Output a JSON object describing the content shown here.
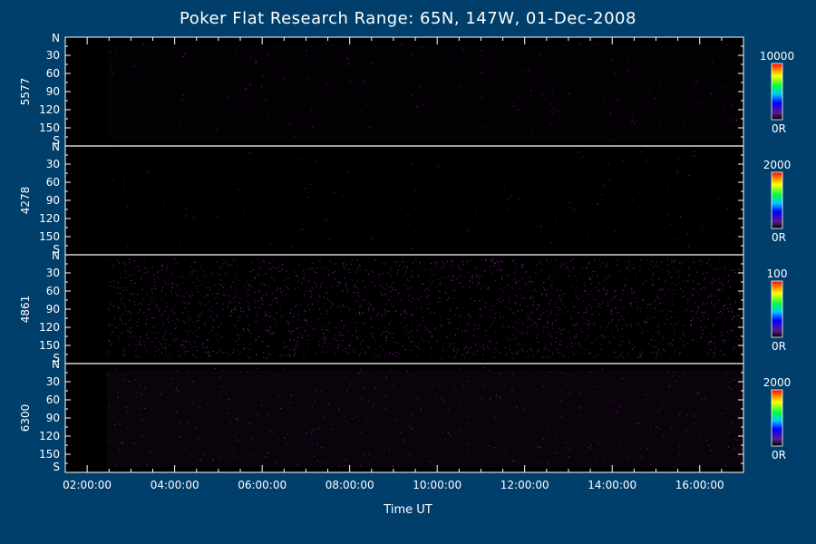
{
  "title": "Poker Flat Research Range: 65N, 147W, 01-Dec-2008",
  "colors": {
    "background": "#003f6b",
    "foreground": "#ffffff",
    "panel_fill": "#000000",
    "speckle": "#7a1e8a"
  },
  "chart_data": {
    "type": "heatmap",
    "title": "Poker Flat Research Range: 65N, 147W, 01-Dec-2008",
    "xlabel": "Time UT",
    "xlim_hours": [
      1.5,
      17.0
    ],
    "x_ticks": [
      "02:00:00",
      "04:00:00",
      "06:00:00",
      "08:00:00",
      "10:00:00",
      "12:00:00",
      "14:00:00",
      "16:00:00"
    ],
    "x_tick_hours": [
      2,
      4,
      6,
      8,
      10,
      12,
      14,
      16
    ],
    "y_ticks": [
      "N",
      "30",
      "60",
      "90",
      "120",
      "150",
      "S"
    ],
    "y_tick_values": [
      0,
      30,
      60,
      90,
      120,
      150,
      180
    ],
    "data_start_hour": 2.45,
    "panels": [
      {
        "name": "5577",
        "cb_max": "10000",
        "cb_min": "0R",
        "level": 0.1,
        "speckle": 0.05
      },
      {
        "name": "4278",
        "cb_max": "2000",
        "cb_min": "0R",
        "level": 0.0,
        "speckle": 0.04
      },
      {
        "name": "4861",
        "cb_max": "100",
        "cb_min": "0R",
        "level": 0.0,
        "speckle": 0.9
      },
      {
        "name": "6300",
        "cb_max": "2000",
        "cb_min": "0R",
        "level": 0.25,
        "speckle": 0.15
      }
    ]
  }
}
